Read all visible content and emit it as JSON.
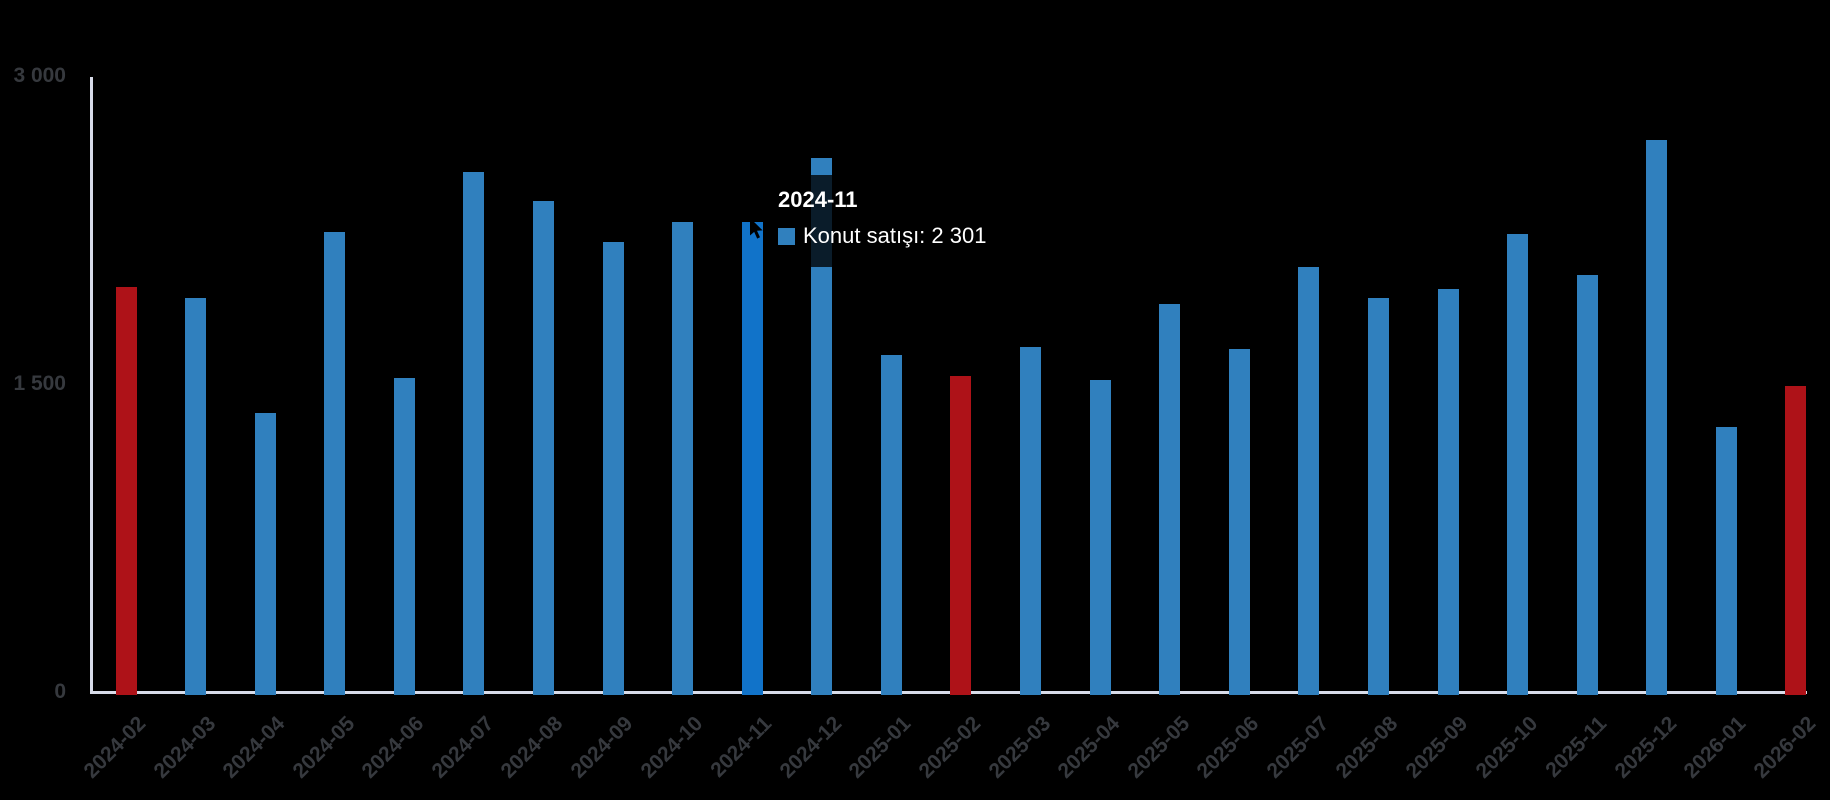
{
  "chart_data": {
    "type": "bar",
    "title": "",
    "xlabel": "",
    "ylabel": "",
    "categories": [
      "2024-02",
      "2024-03",
      "2024-04",
      "2024-05",
      "2024-06",
      "2024-07",
      "2024-08",
      "2024-09",
      "2024-10",
      "2024-11",
      "2024-12",
      "2025-01",
      "2025-02",
      "2025-03",
      "2025-04",
      "2025-05",
      "2025-06",
      "2025-07",
      "2025-08",
      "2025-09",
      "2025-10",
      "2025-11",
      "2025-12",
      "2026-01",
      "2026-02"
    ],
    "series": [
      {
        "name": "Konut satışı",
        "values": [
          1980,
          1930,
          1370,
          2250,
          1540,
          2540,
          2400,
          2200,
          2300,
          2301,
          2610,
          1650,
          1550,
          1690,
          1530,
          1900,
          1680,
          2080,
          1930,
          1970,
          2240,
          2040,
          2700,
          1300,
          1500
        ]
      }
    ],
    "ylim": [
      0,
      3000
    ],
    "y_ticks": [
      {
        "label": "0",
        "value": 0
      },
      {
        "label": "1 500",
        "value": 1500
      },
      {
        "label": "3 000",
        "value": 3000
      }
    ],
    "grid": false,
    "legend_position": "none",
    "highlight_indices": [
      0,
      12,
      24
    ],
    "hovered_index": 9,
    "colors": {
      "bar_default": "#3080BE",
      "bar_highlight": "#AE1218",
      "bar_hover": "#1173C9",
      "axis_line": "#D8DCE9",
      "axis_text": "#36393E",
      "background": "#000000",
      "tooltip_bg": "rgba(0,0,0,0.78)",
      "tooltip_text": "#FFFFFF"
    }
  },
  "tooltip": {
    "title": "2024-11",
    "series_label": "Konut satışı",
    "value": "2 301",
    "line": "Konut satışı: 2 301"
  }
}
